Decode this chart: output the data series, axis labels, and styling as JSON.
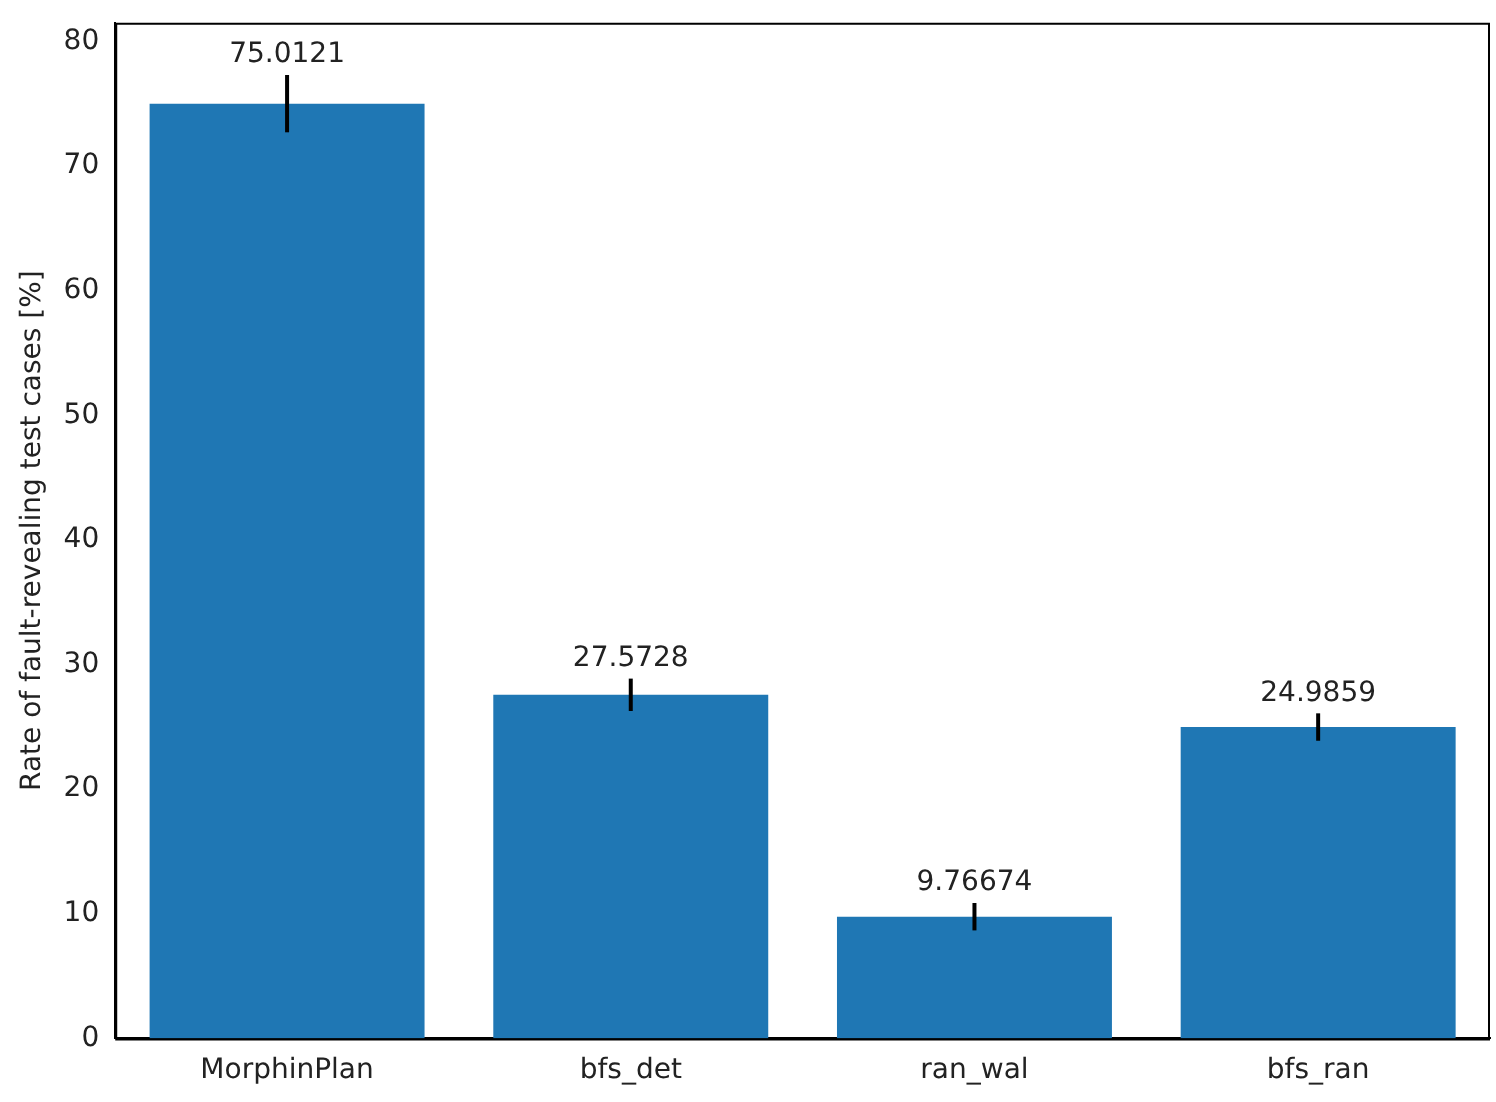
{
  "chart_data": {
    "type": "bar",
    "ylabel": "Rate of fault-revealing test cases [%]",
    "categories": [
      "MorphinPlan",
      "bfs_det",
      "ran_wal",
      "bfs_ran"
    ],
    "values": [
      75.0121,
      27.5728,
      9.76674,
      24.9859
    ],
    "errors": [
      2.3,
      1.3,
      1.1,
      1.1
    ],
    "color": "#1f77b4",
    "ylim": [
      0,
      81.5
    ],
    "yticks": [
      0,
      10,
      20,
      30,
      40,
      50,
      60,
      70,
      80
    ],
    "grid": false,
    "legend": false,
    "data_labels": true
  }
}
